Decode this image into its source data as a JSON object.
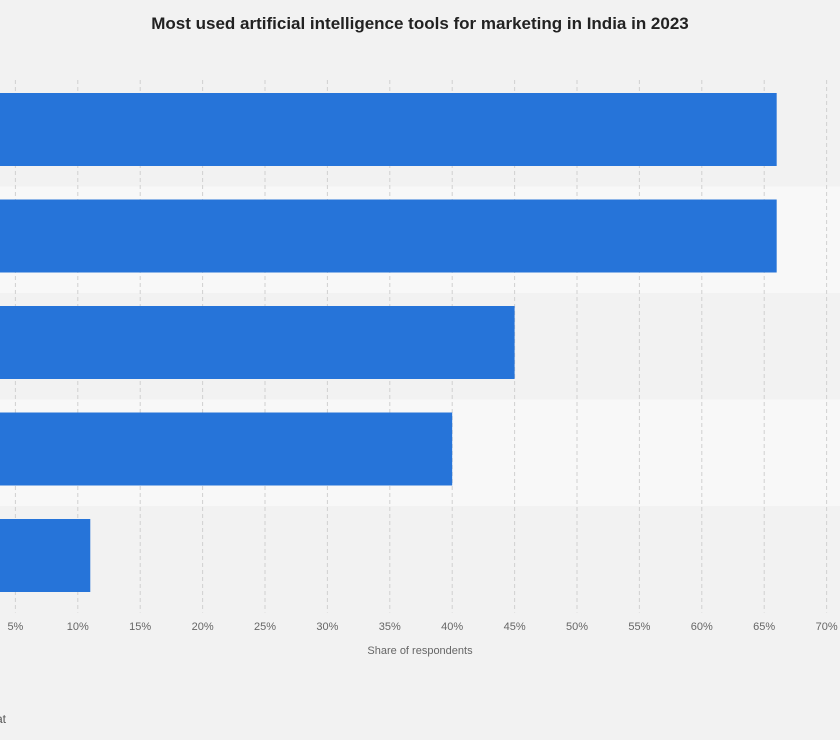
{
  "chart_data": {
    "type": "bar",
    "orientation": "horizontal",
    "title": "Most used artificial intelligence tools for marketing in India in 2023",
    "xlabel": "Share of respondents",
    "ylabel": "",
    "categories": [
      "",
      "",
      "",
      "",
      ""
    ],
    "values": [
      66,
      66,
      45,
      40,
      11
    ],
    "unit": "%",
    "xlim": [
      0,
      70
    ],
    "xticks": [
      "5%",
      "10%",
      "15%",
      "20%",
      "25%",
      "30%",
      "35%",
      "40%",
      "45%",
      "50%",
      "55%",
      "60%",
      "65%",
      "70%"
    ],
    "grid": true,
    "bar_color": "#2674d9"
  },
  "footer": {
    "source_fragment": "cat"
  }
}
